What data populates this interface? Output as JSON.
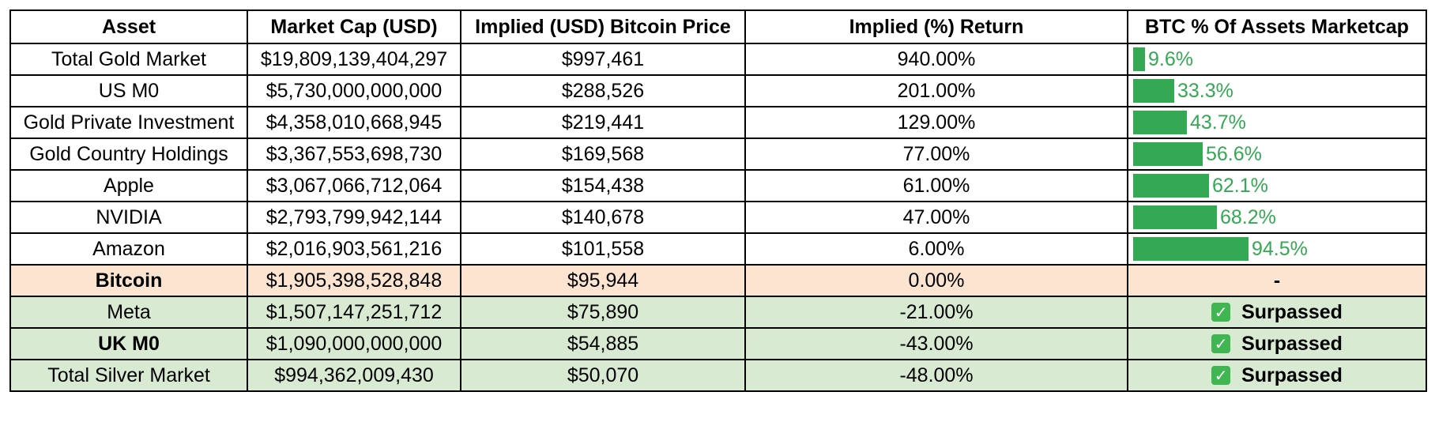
{
  "headers": [
    "Asset",
    "Market Cap (USD)",
    "Implied (USD) Bitcoin Price",
    "Implied (%) Return",
    "BTC % Of Assets Marketcap"
  ],
  "rows": [
    {
      "asset": "Total Gold Market",
      "market_cap": "$19,809,139,404,297",
      "implied_price": "$997,461",
      "implied_return": "940.00%",
      "btc_pct_label": "9.6%",
      "btc_pct_value": 9.6,
      "kind": "bar",
      "bold": false
    },
    {
      "asset": "US M0",
      "market_cap": "$5,730,000,000,000",
      "implied_price": "$288,526",
      "implied_return": "201.00%",
      "btc_pct_label": "33.3%",
      "btc_pct_value": 33.3,
      "kind": "bar",
      "bold": false
    },
    {
      "asset": "Gold Private Investment",
      "market_cap": "$4,358,010,668,945",
      "implied_price": "$219,441",
      "implied_return": "129.00%",
      "btc_pct_label": "43.7%",
      "btc_pct_value": 43.7,
      "kind": "bar",
      "bold": false
    },
    {
      "asset": "Gold Country Holdings",
      "market_cap": "$3,367,553,698,730",
      "implied_price": "$169,568",
      "implied_return": "77.00%",
      "btc_pct_label": "56.6%",
      "btc_pct_value": 56.6,
      "kind": "bar",
      "bold": false
    },
    {
      "asset": "Apple",
      "market_cap": "$3,067,066,712,064",
      "implied_price": "$154,438",
      "implied_return": "61.00%",
      "btc_pct_label": "62.1%",
      "btc_pct_value": 62.1,
      "kind": "bar",
      "bold": false
    },
    {
      "asset": "NVIDIA",
      "market_cap": "$2,793,799,942,144",
      "implied_price": "$140,678",
      "implied_return": "47.00%",
      "btc_pct_label": "68.2%",
      "btc_pct_value": 68.2,
      "kind": "bar",
      "bold": false
    },
    {
      "asset": "Amazon",
      "market_cap": "$2,016,903,561,216",
      "implied_price": "$101,558",
      "implied_return": "6.00%",
      "btc_pct_label": "94.5%",
      "btc_pct_value": 94.5,
      "kind": "bar",
      "bold": false
    },
    {
      "asset": "Bitcoin",
      "market_cap": "$1,905,398,528,848",
      "implied_price": "$95,944",
      "implied_return": "0.00%",
      "btc_pct_label": "-",
      "kind": "dash",
      "bold": true
    },
    {
      "asset": "Meta",
      "market_cap": "$1,507,147,251,712",
      "implied_price": "$75,890",
      "implied_return": "-21.00%",
      "btc_pct_label": "Surpassed",
      "kind": "surpassed",
      "bold": false
    },
    {
      "asset": "UK M0",
      "market_cap": "$1,090,000,000,000",
      "implied_price": "$54,885",
      "implied_return": "-43.00%",
      "btc_pct_label": "Surpassed",
      "kind": "surpassed",
      "bold": true
    },
    {
      "asset": "Total Silver Market",
      "market_cap": "$994,362,009,430",
      "implied_price": "$50,070",
      "implied_return": "-48.00%",
      "btc_pct_label": "Surpassed",
      "kind": "surpassed",
      "bold": false
    }
  ],
  "check_icon_glyph": "✓",
  "colors": {
    "bar": "#34a853",
    "bitcoin_row_bg": "#fce4d0",
    "surpassed_row_bg": "#d9ead3",
    "check_icon_bg": "#3fb652"
  }
}
